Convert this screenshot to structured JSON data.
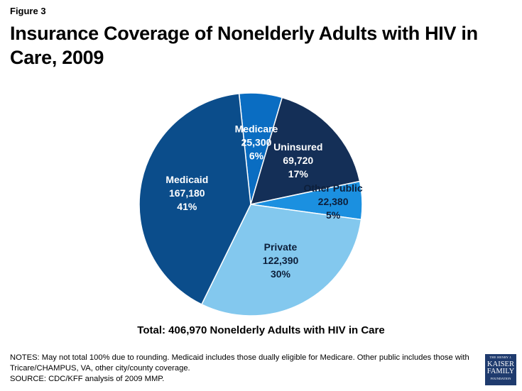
{
  "figure_label": "Figure 3",
  "title": "Insurance Coverage of Nonelderly Adults with HIV in Care, 2009",
  "total_text": "Total: 406,970 Nonelderly Adults with HIV in Care",
  "notes": {
    "line1": "NOTES: May not total 100% due to rounding. Medicaid includes those dually eligible for Medicare. Other public includes those with Tricare/CHAMPUS, VA, other city/county coverage.",
    "line2": "SOURCE: CDC/KFF analysis of 2009 MMP."
  },
  "logo": {
    "line1": "THE HENRY J.",
    "line2": "KAISER",
    "line3": "FAMILY",
    "line4": "FOUNDATION",
    "color": "#1f3b6e"
  },
  "chart_data": {
    "type": "pie",
    "title": "Insurance Coverage of Nonelderly Adults with HIV in Care, 2009",
    "start_angle_deg": -6,
    "direction": "clockwise",
    "slices": [
      {
        "name": "Medicare",
        "value": 25300,
        "value_label": "25,300",
        "percent_label": "6%",
        "color": "#0a6dc2",
        "label_color": "#ffffff"
      },
      {
        "name": "Uninsured",
        "value": 69720,
        "value_label": "69,720",
        "percent_label": "17%",
        "color": "#142f57",
        "label_color": "#ffffff"
      },
      {
        "name": "Other Public",
        "value": 22380,
        "value_label": "22,380",
        "percent_label": "5%",
        "color": "#1b90e0",
        "label_color": "#0d1f3a"
      },
      {
        "name": "Private",
        "value": 122390,
        "value_label": "122,390",
        "percent_label": "30%",
        "color": "#83c8ee",
        "label_color": "#0d1f3a"
      },
      {
        "name": "Medicaid",
        "value": 167180,
        "value_label": "167,180",
        "percent_label": "41%",
        "color": "#0b4d8b",
        "label_color": "#ffffff"
      }
    ]
  }
}
